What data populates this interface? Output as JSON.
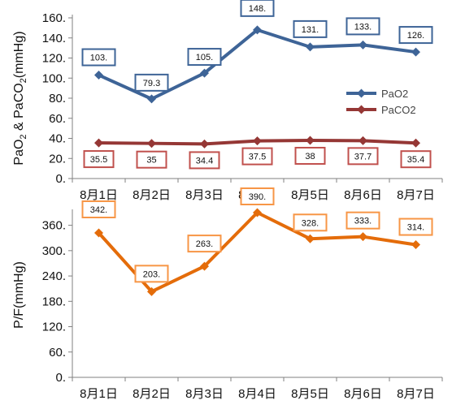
{
  "chart_data": [
    {
      "type": "line",
      "categories": [
        "8月1日",
        "8月2日",
        "8月3日",
        "8月4日",
        "8月5日",
        "8月6日",
        "8月7日"
      ],
      "ylabel_parts": [
        "PaO",
        "2",
        " & PaCO",
        "2",
        "(mmHg)"
      ],
      "yticks": [
        "0.",
        "20.",
        "40.",
        "60.",
        "80.",
        "100.",
        "120.",
        "140.",
        "160."
      ],
      "ylim": [
        0,
        160
      ],
      "legend": "right",
      "series": [
        {
          "name": "PaO2",
          "color": "#3e6497",
          "values": [
            103,
            79.3,
            105,
            148,
            131,
            133,
            126
          ],
          "labels": [
            "103.",
            "79.3",
            "105.",
            "148.",
            "131.",
            "133.",
            "126."
          ],
          "label_color": "#3e6497"
        },
        {
          "name": "PaCO2",
          "color": "#953735",
          "values": [
            35.5,
            35,
            34.4,
            37.5,
            38,
            37.7,
            35.4
          ],
          "labels": [
            "35.5",
            "35",
            "34.4",
            "37.5",
            "38",
            "37.7",
            "35.4"
          ],
          "label_color": "#c0504d"
        }
      ]
    },
    {
      "type": "line",
      "categories": [
        "8月1日",
        "8月2日",
        "8月3日",
        "8月4日",
        "8月5日",
        "8月6日",
        "8月7日"
      ],
      "ylabel": "P/F(mmHg)",
      "yticks": [
        "0.",
        "60.",
        "120.",
        "180.",
        "240.",
        "300.",
        "360."
      ],
      "ylim": [
        0,
        390
      ],
      "series": [
        {
          "color": "#e46c0a",
          "values": [
            342,
            203,
            263,
            390,
            328,
            333,
            314
          ],
          "labels": [
            "342.",
            "203.",
            "263.",
            "390.",
            "328.",
            "333.",
            "314."
          ],
          "label_color": "#f79646"
        }
      ]
    }
  ]
}
